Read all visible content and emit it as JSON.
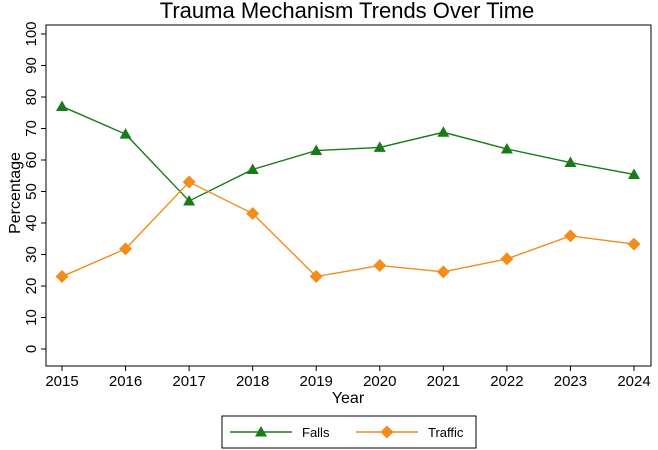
{
  "chart_data": {
    "type": "line",
    "title": "Trauma Mechanism Trends Over Time",
    "xlabel": "Year",
    "ylabel": "Percentage",
    "x": [
      "2015",
      "2016",
      "2017",
      "2018",
      "2019",
      "2020",
      "2021",
      "2022",
      "2023",
      "2024"
    ],
    "xlim": [
      2015,
      2024
    ],
    "ylim": [
      0,
      100
    ],
    "yticks": [
      0,
      10,
      20,
      30,
      40,
      50,
      60,
      70,
      80,
      90,
      100
    ],
    "grid": false,
    "legend_position": "bottom",
    "series": [
      {
        "name": "Falls",
        "marker": "triangle",
        "color": "#1a7a1a",
        "values": [
          77,
          68.2,
          47,
          57,
          63,
          64,
          68.8,
          63.5,
          59.2,
          55.4
        ]
      },
      {
        "name": "Traffic",
        "marker": "diamond",
        "color": "#f28c1a",
        "values": [
          23,
          31.8,
          53,
          43,
          23,
          26.5,
          24.5,
          28.6,
          35.9,
          33.3
        ]
      }
    ]
  }
}
